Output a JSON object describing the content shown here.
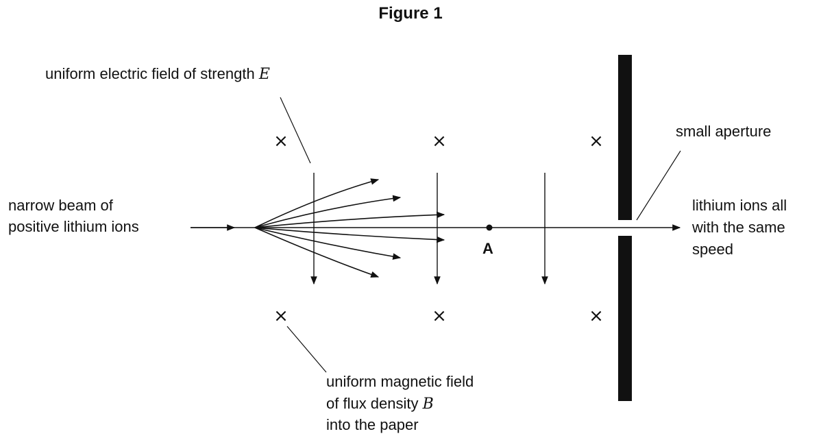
{
  "figure": {
    "title": "Figure 1"
  },
  "labels": {
    "electric_field": "uniform electric field of strength",
    "electric_symbol": "E",
    "beam_line1": "narrow beam of",
    "beam_line2": "positive lithium ions",
    "aperture": "small aperture",
    "out_line1": "lithium ions all",
    "out_line2": "with the same",
    "out_line3": "speed",
    "point_a": "A",
    "magnetic_line1": "uniform magnetic field",
    "magnetic_line2_prefix": "of flux density",
    "magnetic_symbol": "B",
    "magnetic_line3": "into the paper"
  },
  "symbols": {
    "field_into_page": "×"
  },
  "colors": {
    "ink": "#111111",
    "background": "#ffffff"
  }
}
